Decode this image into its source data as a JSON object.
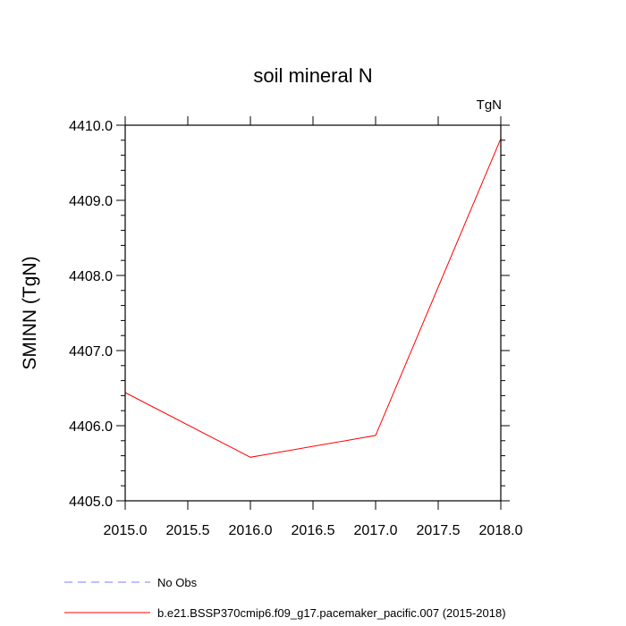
{
  "chart_data": {
    "type": "line",
    "title": "soil mineral N",
    "units_label": "TgN",
    "xlabel": "",
    "ylabel": "SMINN  (TgN)",
    "xlim": [
      2015.0,
      2018.0
    ],
    "ylim": [
      4405.0,
      4410.0
    ],
    "x_ticks": [
      2015.0,
      2015.5,
      2016.0,
      2016.5,
      2017.0,
      2017.5,
      2018.0
    ],
    "x_tick_labels": [
      "2015.0",
      "2015.5",
      "2016.0",
      "2016.5",
      "2017.0",
      "2017.5",
      "2018.0"
    ],
    "y_ticks": [
      4405.0,
      4406.0,
      4407.0,
      4408.0,
      4409.0,
      4410.0
    ],
    "y_tick_labels": [
      "4405.0",
      "4406.0",
      "4407.0",
      "4408.0",
      "4409.0",
      "4410.0"
    ],
    "grid": false,
    "legend_position": "bottom",
    "series": [
      {
        "name": "No Obs",
        "color": "#7b7bff",
        "style": "dashed",
        "x": [],
        "y": []
      },
      {
        "name": "b.e21.BSSP370cmip6.f09_g17.pacemaker_pacific.007 (2015-2018)",
        "color": "#ff0000",
        "style": "solid",
        "x": [
          2015.0,
          2016.0,
          2017.0,
          2018.0
        ],
        "y": [
          4406.44,
          4405.58,
          4405.87,
          4409.82
        ]
      }
    ]
  }
}
